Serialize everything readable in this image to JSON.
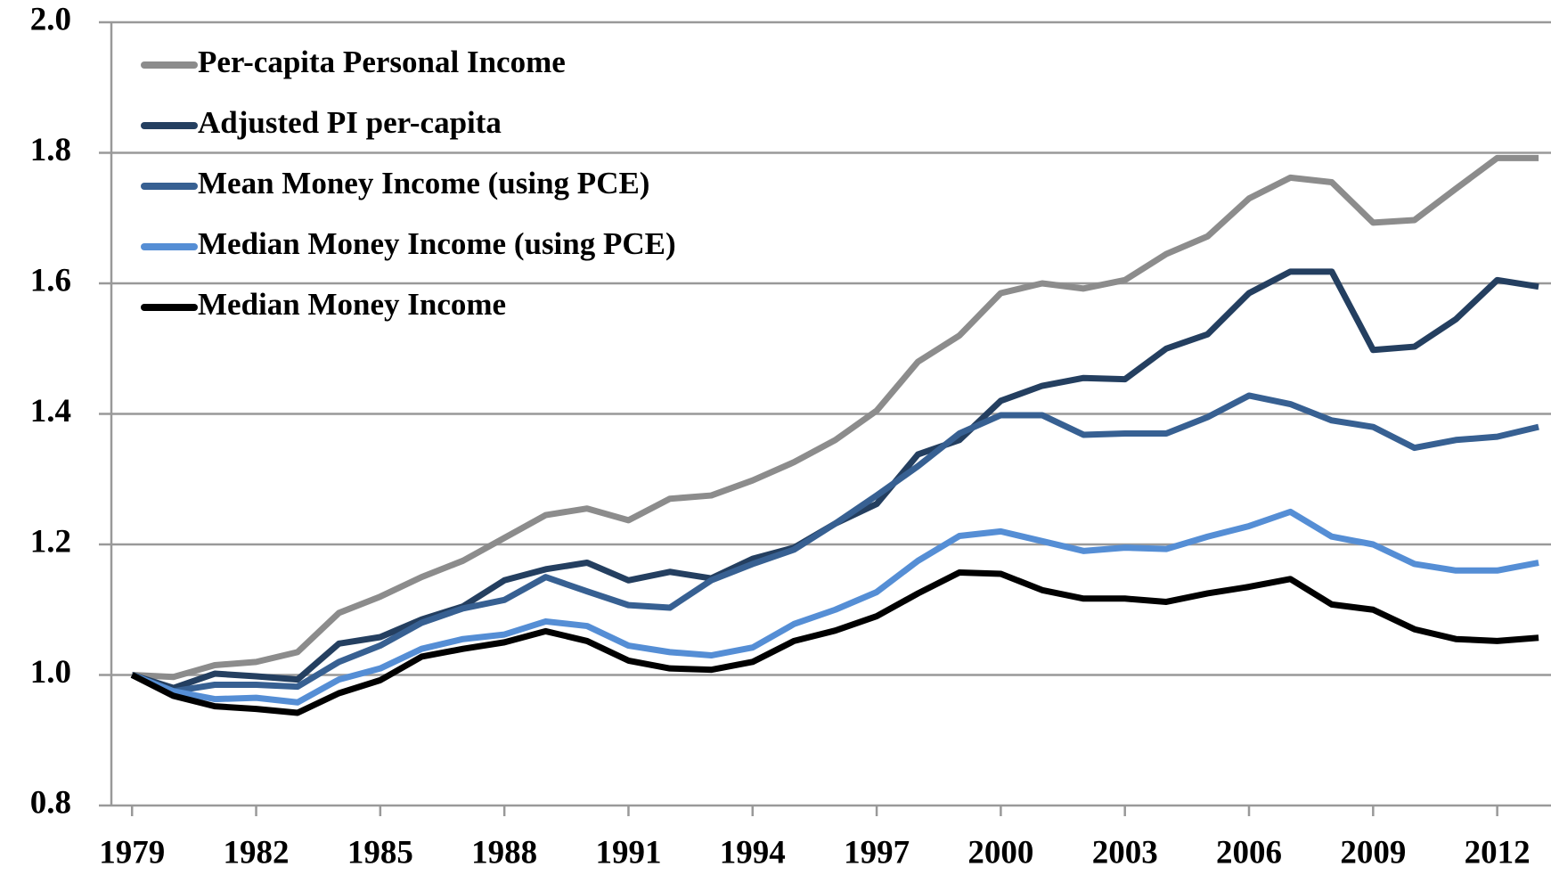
{
  "chart_data": {
    "type": "line",
    "x": [
      1979,
      1980,
      1981,
      1982,
      1983,
      1984,
      1985,
      1986,
      1987,
      1988,
      1989,
      1990,
      1991,
      1992,
      1993,
      1994,
      1995,
      1996,
      1997,
      1998,
      1999,
      2000,
      2001,
      2002,
      2003,
      2004,
      2005,
      2006,
      2007,
      2008,
      2009,
      2010,
      2011,
      2012,
      2013
    ],
    "series": [
      {
        "name": "Per-capita Personal Income",
        "color": "#8c8c8c",
        "values": [
          1.0,
          0.997,
          1.015,
          1.02,
          1.035,
          1.095,
          1.12,
          1.15,
          1.175,
          1.21,
          1.245,
          1.255,
          1.237,
          1.27,
          1.275,
          1.298,
          1.326,
          1.36,
          1.405,
          1.48,
          1.52,
          1.585,
          1.6,
          1.592,
          1.605,
          1.645,
          1.672,
          1.73,
          1.762,
          1.755,
          1.693,
          1.697,
          1.745,
          1.792,
          1.792
        ]
      },
      {
        "name": "Adjusted PI per-capita",
        "color": "#243f60",
        "values": [
          1.0,
          0.98,
          1.002,
          0.998,
          0.993,
          1.048,
          1.058,
          1.085,
          1.105,
          1.145,
          1.162,
          1.172,
          1.145,
          1.158,
          1.148,
          1.178,
          1.195,
          1.232,
          1.262,
          1.338,
          1.36,
          1.42,
          1.443,
          1.455,
          1.453,
          1.5,
          1.522,
          1.585,
          1.618,
          1.618,
          1.498,
          1.503,
          1.545,
          1.605,
          1.595
        ]
      },
      {
        "name": "Mean Money Income (using PCE)",
        "color": "#376092",
        "values": [
          1.0,
          0.975,
          0.985,
          0.985,
          0.982,
          1.02,
          1.045,
          1.08,
          1.102,
          1.115,
          1.15,
          1.128,
          1.107,
          1.103,
          1.145,
          1.17,
          1.192,
          1.232,
          1.275,
          1.32,
          1.37,
          1.398,
          1.398,
          1.368,
          1.37,
          1.37,
          1.395,
          1.428,
          1.415,
          1.39,
          1.38,
          1.348,
          1.36,
          1.365,
          1.38
        ]
      },
      {
        "name": "Median Money Income (using PCE)",
        "color": "#558ed5",
        "values": [
          1.0,
          0.975,
          0.963,
          0.965,
          0.958,
          0.993,
          1.01,
          1.04,
          1.055,
          1.062,
          1.082,
          1.075,
          1.045,
          1.035,
          1.03,
          1.042,
          1.078,
          1.1,
          1.127,
          1.175,
          1.213,
          1.22,
          1.205,
          1.19,
          1.195,
          1.193,
          1.212,
          1.228,
          1.25,
          1.212,
          1.2,
          1.17,
          1.16,
          1.16,
          1.172
        ]
      },
      {
        "name": "Median Money Income",
        "color": "#000000",
        "values": [
          1.0,
          0.968,
          0.952,
          0.948,
          0.942,
          0.972,
          0.992,
          1.028,
          1.04,
          1.05,
          1.067,
          1.052,
          1.022,
          1.01,
          1.008,
          1.02,
          1.052,
          1.068,
          1.09,
          1.125,
          1.157,
          1.155,
          1.13,
          1.117,
          1.117,
          1.112,
          1.125,
          1.135,
          1.147,
          1.108,
          1.1,
          1.07,
          1.055,
          1.052,
          1.057
        ]
      }
    ],
    "xlim": [
      1978.5,
      2013.3
    ],
    "xticks": [
      1979,
      1982,
      1985,
      1988,
      1991,
      1994,
      1997,
      2000,
      2003,
      2006,
      2009,
      2012
    ],
    "ylim": [
      0.8,
      2.0
    ],
    "yticks": [
      {
        "value": 0.8,
        "label": "0.8"
      },
      {
        "value": 1.0,
        "label": "1.0"
      },
      {
        "value": 1.2,
        "label": "1.2"
      },
      {
        "value": 1.4,
        "label": "1.4"
      },
      {
        "value": 1.6,
        "label": "1.6"
      },
      {
        "value": 1.8,
        "label": "1.8"
      },
      {
        "value": 2.0,
        "label": "2.0"
      }
    ],
    "grid": true,
    "legend": "upper left"
  }
}
